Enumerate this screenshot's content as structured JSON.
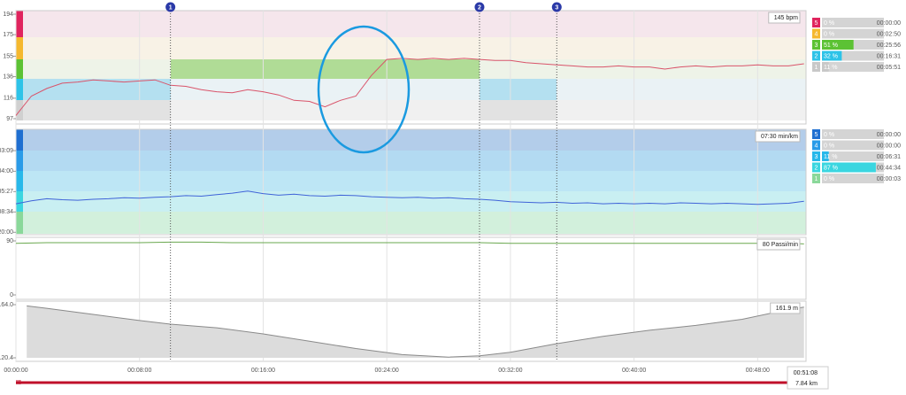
{
  "chart_data": [
    {
      "type": "line",
      "color": "#d9546a",
      "current_label": "145 bpm",
      "xlim": [
        0,
        51.13
      ],
      "ylim": [
        97,
        194
      ],
      "yticks": [
        97,
        116,
        136,
        155,
        175,
        194
      ],
      "x": [
        0,
        1,
        2,
        3,
        4,
        5,
        6,
        7,
        8,
        9,
        10,
        11,
        12,
        13,
        14,
        15,
        16,
        17,
        18,
        19,
        20,
        21,
        22,
        23,
        24,
        25,
        26,
        27,
        28,
        29,
        30,
        31,
        32,
        33,
        34,
        35,
        36,
        37,
        38,
        39,
        40,
        41,
        42,
        43,
        44,
        45,
        46,
        47,
        48,
        49,
        50,
        51
      ],
      "values": [
        100,
        118,
        125,
        130,
        131,
        133,
        132,
        131,
        132,
        133,
        128,
        127,
        124,
        122,
        121,
        124,
        122,
        119,
        114,
        113,
        108,
        114,
        118,
        137,
        152,
        153,
        152,
        153,
        152,
        153,
        152,
        151,
        151,
        149,
        148,
        147,
        146,
        145,
        145,
        146,
        145,
        145,
        143,
        145,
        146,
        145,
        146,
        146,
        147,
        146,
        146,
        148
      ],
      "zones": [
        {
          "zone": "5",
          "color": "#e0245e",
          "percent": 0,
          "percent_label": "0 %",
          "time": "00:00:00"
        },
        {
          "zone": "4",
          "color": "#f5b82e",
          "percent": 0,
          "percent_label": "0 %",
          "time": "00:02:50"
        },
        {
          "zone": "3",
          "color": "#5cc234",
          "percent": 51,
          "percent_label": "51 %",
          "time": "00:25:56"
        },
        {
          "zone": "2",
          "color": "#2dc3e8",
          "percent": 32,
          "percent_label": "32 %",
          "time": "00:16:31"
        },
        {
          "zone": "1",
          "color": "#c8c8c8",
          "percent": 11,
          "percent_label": "11 %",
          "time": "00:05:51"
        }
      ]
    },
    {
      "type": "line",
      "color": "#3f63d8",
      "current_label": "07:30 min/km",
      "xlim": [
        0,
        51.13
      ],
      "ylim": [
        2.7,
        22.9
      ],
      "yticks": [
        {
          "value": 3,
          "label": "20:00"
        },
        {
          "value": 7,
          "label": "08:34"
        },
        {
          "value": 11,
          "label": "05:27"
        },
        {
          "value": 15,
          "label": "04:00"
        },
        {
          "value": 19.05,
          "label": "03:09"
        }
      ],
      "x": [
        0,
        1,
        2,
        3,
        4,
        5,
        6,
        7,
        8,
        9,
        10,
        11,
        12,
        13,
        14,
        15,
        16,
        17,
        18,
        19,
        20,
        21,
        22,
        23,
        24,
        25,
        26,
        27,
        28,
        29,
        30,
        31,
        32,
        33,
        34,
        35,
        36,
        37,
        38,
        39,
        40,
        41,
        42,
        43,
        44,
        45,
        46,
        47,
        48,
        49,
        50,
        51
      ],
      "values": [
        8.6,
        9.2,
        9.6,
        9.4,
        9.3,
        9.5,
        9.6,
        9.8,
        9.7,
        9.9,
        10.0,
        10.2,
        10.1,
        10.4,
        10.7,
        11.1,
        10.6,
        10.3,
        10.5,
        10.2,
        10.1,
        10.3,
        10.2,
        10.0,
        9.9,
        9.8,
        9.9,
        9.7,
        9.8,
        9.6,
        9.5,
        9.3,
        9.0,
        8.9,
        8.8,
        8.9,
        8.7,
        8.8,
        8.6,
        8.7,
        8.6,
        8.7,
        8.6,
        8.8,
        8.7,
        8.6,
        8.7,
        8.6,
        8.5,
        8.6,
        8.7,
        9.1
      ],
      "zones": [
        {
          "zone": "5",
          "color": "#1f6fd1",
          "percent": 0,
          "percent_label": "0 %",
          "time": "00:00:00"
        },
        {
          "zone": "4",
          "color": "#2a9be8",
          "percent": 0,
          "percent_label": "0 %",
          "time": "00:00:00"
        },
        {
          "zone": "3",
          "color": "#27b8ea",
          "percent": 11,
          "percent_label": "11 %",
          "time": "00:06:31"
        },
        {
          "zone": "2",
          "color": "#3ad6e0",
          "percent": 87,
          "percent_label": "87 %",
          "time": "00:44:34"
        },
        {
          "zone": "1",
          "color": "#8ad89a",
          "percent": 0,
          "percent_label": "0 %",
          "time": "00:00:03"
        }
      ]
    },
    {
      "type": "line",
      "color": "#6aa84f",
      "current_label": "80 Passi/min",
      "xlim": [
        0,
        51.13
      ],
      "ylim": [
        0,
        90
      ],
      "yticks": [
        0,
        90
      ],
      "x": [
        0,
        2,
        4,
        6,
        8,
        10,
        12,
        14,
        16,
        18,
        20,
        22,
        24,
        26,
        28,
        30,
        32,
        34,
        36,
        38,
        40,
        42,
        44,
        46,
        48,
        50,
        51
      ],
      "values": [
        86,
        87,
        87,
        87,
        87,
        88,
        88,
        87,
        87,
        87,
        87,
        87,
        87,
        87,
        87,
        87,
        86,
        86,
        86,
        86,
        86,
        86,
        86,
        86,
        86,
        86,
        85
      ]
    },
    {
      "type": "area",
      "color": "#8a8a8a",
      "current_label": "161.9 m",
      "xlim": [
        0,
        51.13
      ],
      "ylim": [
        120.4,
        164.0
      ],
      "yticks": [
        {
          "value": 120.4,
          "label": "120.4"
        },
        {
          "value": 164.0,
          "label": "164.0"
        }
      ],
      "xticks": [
        {
          "value": 0,
          "label": "00:00:00"
        },
        {
          "value": 8,
          "label": "00:08:00"
        },
        {
          "value": 16,
          "label": "00:16:00"
        },
        {
          "value": 24,
          "label": "00:24:00"
        },
        {
          "value": 32,
          "label": "00:32:00"
        },
        {
          "value": 40,
          "label": "00:40:00"
        },
        {
          "value": 48,
          "label": "00:48:00"
        }
      ],
      "x": [
        0.7,
        2,
        5,
        8,
        10,
        13,
        16,
        19,
        22,
        25,
        28,
        30,
        32,
        35,
        38,
        41,
        44,
        47,
        50,
        51
      ],
      "values": [
        163,
        161,
        156,
        151,
        148,
        145,
        140,
        134,
        128,
        123,
        121,
        122,
        125,
        132,
        138,
        143,
        147,
        152,
        160,
        162
      ]
    }
  ],
  "laps": [
    {
      "label": "1",
      "x": 10
    },
    {
      "label": "2",
      "x": 30
    },
    {
      "label": "3",
      "x": 35
    }
  ],
  "summary": {
    "duration": "00:51:08",
    "distance": "7.84 km",
    "handle": "III"
  }
}
